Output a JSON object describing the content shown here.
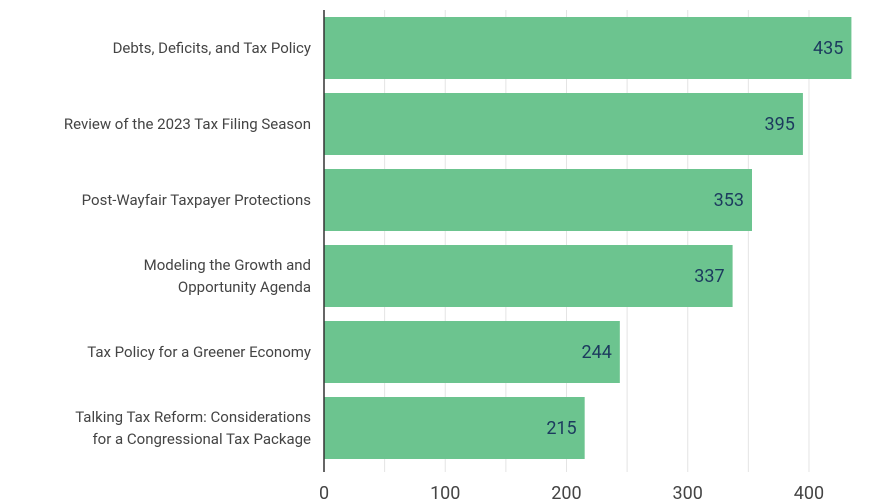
{
  "chart_data": {
    "type": "bar",
    "orientation": "horizontal",
    "categories": [
      "Debts, Deficits, and Tax Policy",
      "Review of the 2023 Tax Filing Season",
      "Post-Wayfair Taxpayer Protections",
      "Modeling the Growth and\nOpportunity Agenda",
      "Tax Policy for a Greener Economy",
      "Talking Tax Reform: Considerations\nfor a Congressional Tax Package"
    ],
    "values": [
      435,
      395,
      353,
      337,
      244,
      215
    ],
    "color": "#6cc48f",
    "xlim": [
      0,
      450
    ],
    "xticks": [
      0,
      100,
      200,
      300,
      400
    ],
    "xminorticks": [
      50,
      150,
      250,
      350,
      450
    ],
    "grid": true
  }
}
